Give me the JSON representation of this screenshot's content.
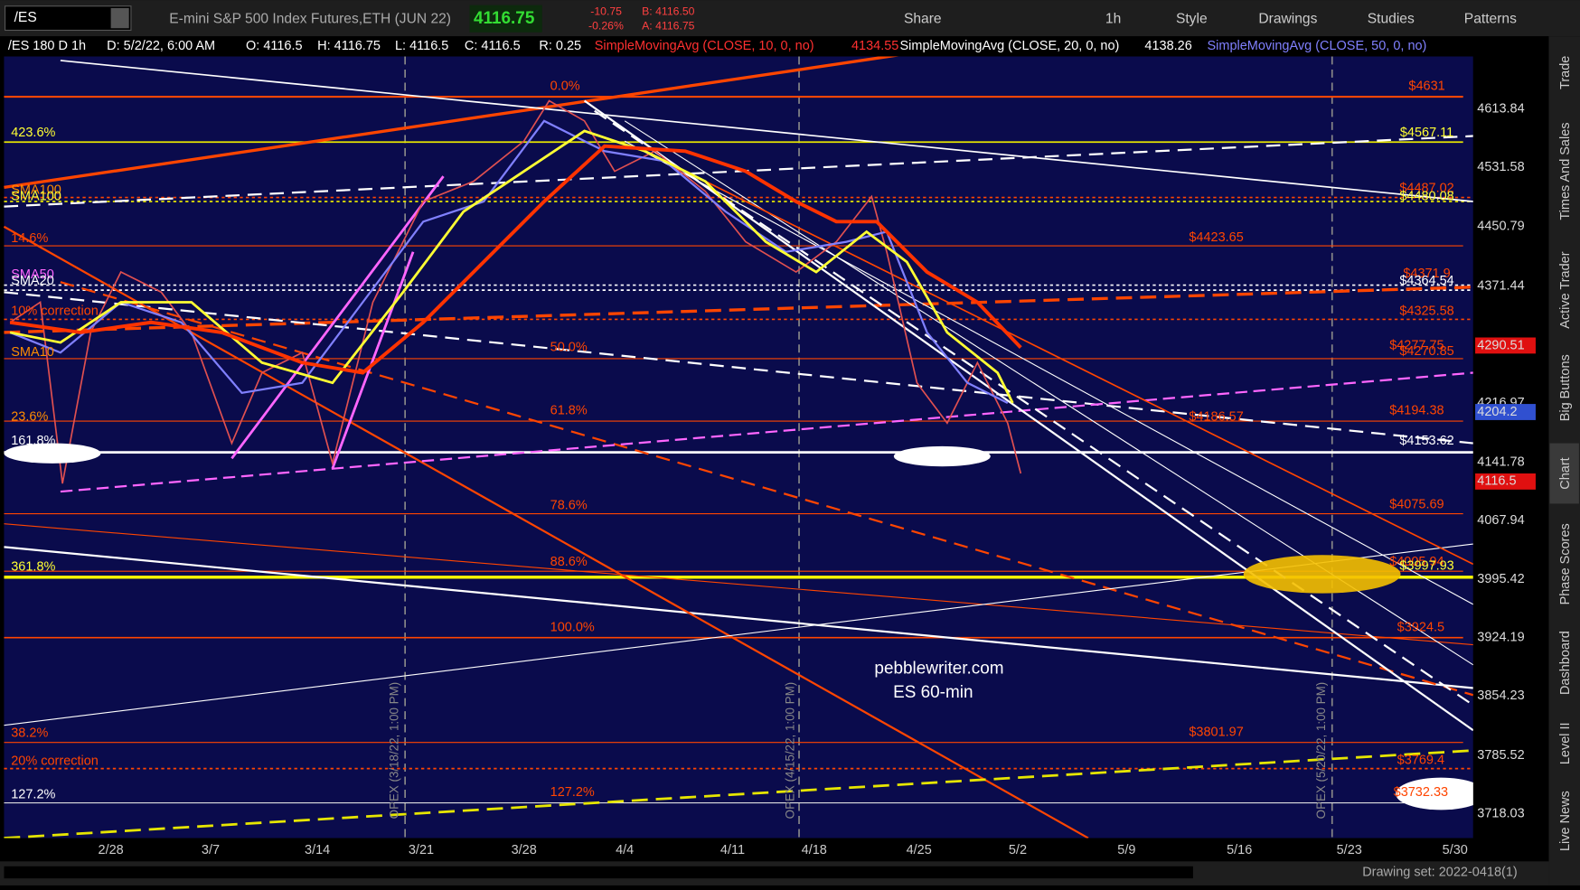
{
  "toolbar": {
    "symbol": "/ES",
    "description": "E-mini S&P 500 Index Futures,ETH (JUN 22)",
    "last": "4116.75",
    "change": "-10.75",
    "change_pct": "-0.26%",
    "bid": "B: 4116.50",
    "ask": "A: 4116.75",
    "buttons": [
      "Share",
      "1h",
      "Style",
      "Drawings",
      "Studies",
      "Patterns"
    ]
  },
  "header": {
    "items": [
      "/ES 180 D 1h",
      "D: 5/2/22, 6:00 AM",
      "O: 4116.5",
      "H: 4116.75",
      "L: 4116.5",
      "C: 4116.5",
      "R: 0.25"
    ],
    "studies": [
      {
        "name": "SimpleMovingAvg (CLOSE, 10, 0, no)",
        "value": "4134.55"
      },
      {
        "name": "SimpleMovingAvg (CLOSE, 20, 0, no)",
        "value": "4138.26"
      },
      {
        "name": "SimpleMovingAvg (CLOSE, 50, 0, no)"
      }
    ]
  },
  "price_axis": [
    "4613.84",
    "4531.58",
    "4450.79",
    "4371.44",
    "4290.51",
    "4216.97",
    "4204.2",
    "4141.78",
    "4116.5",
    "4067.94",
    "3995.42",
    "3924.19",
    "3854.23",
    "3785.52",
    "3718.03"
  ],
  "date_axis": [
    "2/28",
    "3/7",
    "3/14",
    "3/21",
    "3/28",
    "4/4",
    "4/11",
    "4/18",
    "4/25",
    "5/2",
    "5/9",
    "5/16",
    "5/23",
    "5/30"
  ],
  "left_labels": [
    "423.6%",
    "SMA100",
    "SMA100",
    "14.6%",
    "SMA50",
    "SMA20",
    "10% correction",
    "SMA10",
    "23.6%",
    "161.8%",
    "361.8%",
    "38.2%",
    "20% correction",
    "127.2%"
  ],
  "fib_labels": [
    "0.0%",
    "50.0%",
    "61.8%",
    "78.6%",
    "88.6%",
    "100.0%",
    "127.2%"
  ],
  "level_labels": [
    "$4631",
    "$4567.11",
    "$4487.02",
    "$4480.08",
    "$4423.65",
    "$4371.9",
    "$4364.54",
    "$4325.58",
    "$4277.75",
    "$4270.85",
    "$4194.38",
    "$4186.57",
    "$4153.62",
    "$4075.69",
    "$4005.94",
    "$3997.93",
    "$3924.5",
    "$3801.97",
    "$3769.4",
    "$3732.33"
  ],
  "opex_labels": [
    "OPEX (3/18/22, 1:00 PM)",
    "OPEX (4/15/22, 1:00 PM)",
    "OPEX (5/20/22, 1:00 PM)"
  ],
  "watermark": [
    "pebblewriter.com",
    "ES 60-min"
  ],
  "side_tabs": [
    "Trade",
    "Times And Sales",
    "Active Trader",
    "Big Buttons",
    "Chart",
    "Phase Scores",
    "Dashboard",
    "Level II",
    "Live News"
  ],
  "footer": "Drawing set: 2022-0418(1)"
}
